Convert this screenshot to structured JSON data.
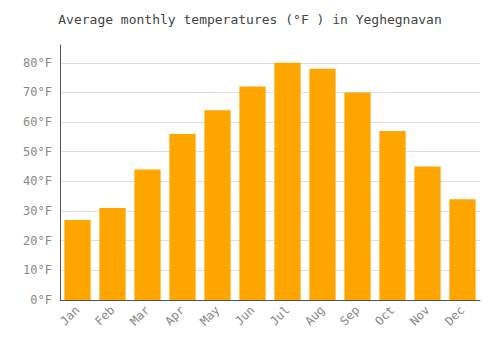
{
  "chart_data": {
    "type": "bar",
    "title": "Average monthly temperatures (°F ) in Yeghegnavan",
    "categories": [
      "Jan",
      "Feb",
      "Mar",
      "Apr",
      "May",
      "Jun",
      "Jul",
      "Aug",
      "Sep",
      "Oct",
      "Nov",
      "Dec"
    ],
    "values": [
      27,
      31,
      44,
      56,
      64,
      72,
      80,
      78,
      70,
      57,
      45,
      34
    ],
    "color": "#FFA500",
    "ylim": [
      0,
      86
    ],
    "yticks": [
      {
        "value": 0,
        "label": "0°F"
      },
      {
        "value": 10,
        "label": "10°F"
      },
      {
        "value": 20,
        "label": "20°F"
      },
      {
        "value": 30,
        "label": "30°F"
      },
      {
        "value": 40,
        "label": "40°F"
      },
      {
        "value": 50,
        "label": "50°F"
      },
      {
        "value": 60,
        "label": "60°F"
      },
      {
        "value": 70,
        "label": "70°F"
      },
      {
        "value": 80,
        "label": "80°F"
      }
    ],
    "grid": true
  }
}
